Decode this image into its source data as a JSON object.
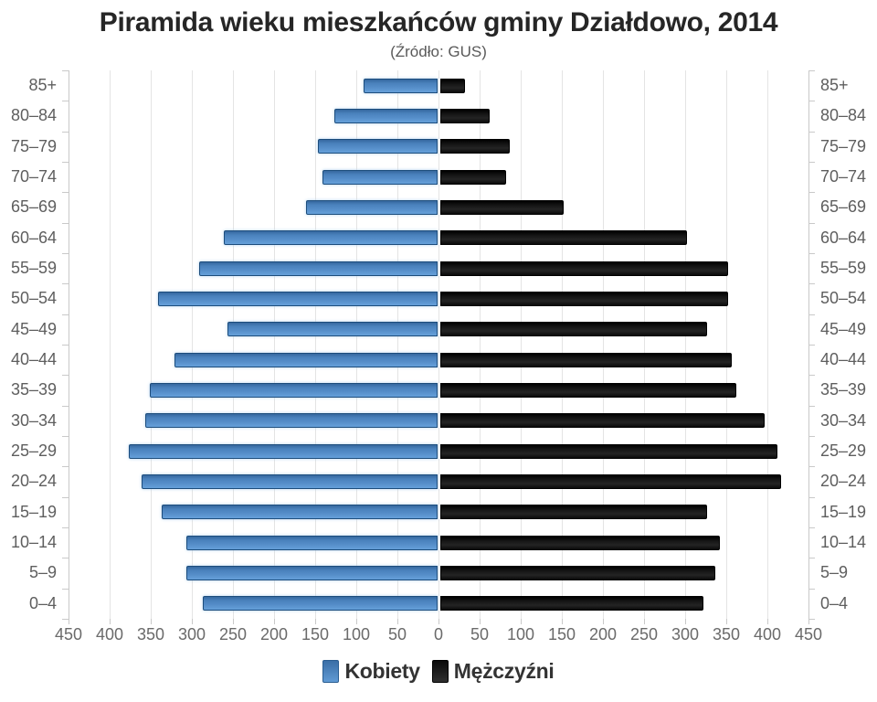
{
  "title": "Piramida wieku mieszkańców gminy Działdowo, 2014",
  "subtitle": "(Źródło: GUS)",
  "legend": {
    "items": [
      {
        "label": "Kobiety",
        "color": "#4a82bd"
      },
      {
        "label": "Mężczyźni",
        "color": "#1a1a1a"
      }
    ]
  },
  "chart_data": {
    "type": "bar",
    "variant": "population-pyramid",
    "title": "Piramida wieku mieszkańców gminy Działdowo, 2014",
    "subtitle": "(Źródło: GUS)",
    "categories": [
      "85+",
      "80–84",
      "75–79",
      "70–74",
      "65–69",
      "60–64",
      "55–59",
      "50–54",
      "45–49",
      "40–44",
      "35–39",
      "30–34",
      "25–29",
      "20–24",
      "15–19",
      "10–14",
      "5–9",
      "0–4"
    ],
    "series": [
      {
        "name": "Kobiety",
        "side": "left",
        "color": "#4a82bd",
        "values": [
          90,
          125,
          145,
          140,
          160,
          260,
          290,
          340,
          255,
          320,
          350,
          355,
          375,
          360,
          335,
          305,
          305,
          285
        ]
      },
      {
        "name": "Mężczyźni",
        "side": "right",
        "color": "#1a1a1a",
        "values": [
          30,
          60,
          85,
          80,
          150,
          300,
          350,
          350,
          325,
          355,
          360,
          395,
          410,
          415,
          325,
          340,
          335,
          320
        ]
      }
    ],
    "x_tick_labels": [
      "450",
      "400",
      "350",
      "300",
      "250",
      "200",
      "150",
      "100",
      "50",
      "0",
      "50",
      "100",
      "150",
      "200",
      "250",
      "300",
      "350",
      "400",
      "450"
    ],
    "xlim": [
      0,
      450
    ],
    "grid": true,
    "legend_position": "bottom"
  }
}
